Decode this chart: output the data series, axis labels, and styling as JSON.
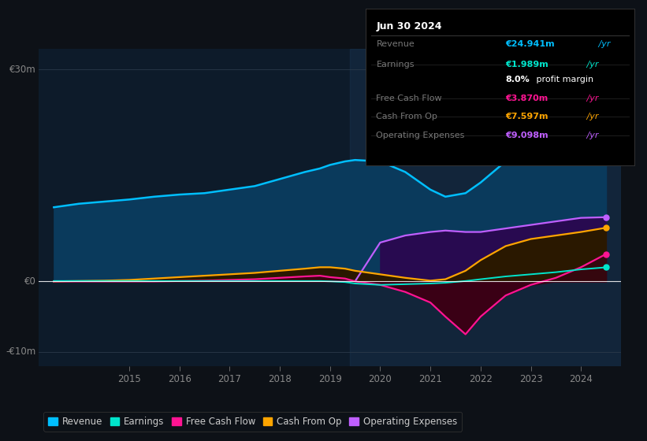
{
  "background_color": "#0d1117",
  "plot_bg_color": "#0d1b2a",
  "title": "Jun 30 2024",
  "info_rows": [
    {
      "label": "Revenue",
      "value": "€24.941m",
      "suffix": " /yr",
      "value_color": "#00bfff"
    },
    {
      "label": "Earnings",
      "value": "€1.989m",
      "suffix": " /yr",
      "value_color": "#00e5cc"
    },
    {
      "label": "",
      "value": "8.0%",
      "suffix": " profit margin",
      "value_color": "#ffffff"
    },
    {
      "label": "Free Cash Flow",
      "value": "€3.870m",
      "suffix": " /yr",
      "value_color": "#ff1493"
    },
    {
      "label": "Cash From Op",
      "value": "€7.597m",
      "suffix": " /yr",
      "value_color": "#ffa500"
    },
    {
      "label": "Operating Expenses",
      "value": "€9.098m",
      "suffix": " /yr",
      "value_color": "#bf5fff"
    }
  ],
  "years": [
    2013.5,
    2014.0,
    2014.5,
    2015.0,
    2015.5,
    2016.0,
    2016.5,
    2017.0,
    2017.5,
    2018.0,
    2018.5,
    2018.8,
    2019.0,
    2019.3,
    2019.5,
    2020.0,
    2020.5,
    2021.0,
    2021.3,
    2021.7,
    2022.0,
    2022.5,
    2023.0,
    2023.5,
    2024.0,
    2024.5
  ],
  "revenue": [
    10.5,
    11.0,
    11.3,
    11.6,
    12.0,
    12.3,
    12.5,
    13.0,
    13.5,
    14.5,
    15.5,
    16.0,
    16.5,
    17.0,
    17.2,
    17.0,
    15.5,
    13.0,
    12.0,
    12.5,
    14.0,
    17.0,
    19.5,
    21.5,
    23.5,
    24.941
  ],
  "earnings": [
    0.05,
    0.05,
    0.05,
    0.05,
    0.05,
    0.05,
    0.05,
    0.05,
    0.05,
    0.05,
    0.05,
    0.05,
    0.0,
    -0.1,
    -0.3,
    -0.5,
    -0.4,
    -0.3,
    -0.2,
    0.05,
    0.3,
    0.7,
    1.0,
    1.3,
    1.7,
    1.989
  ],
  "free_cash_flow": [
    0.0,
    0.0,
    0.0,
    0.0,
    0.0,
    0.05,
    0.1,
    0.2,
    0.3,
    0.5,
    0.7,
    0.8,
    0.6,
    0.4,
    0.0,
    -0.5,
    -1.5,
    -3.0,
    -5.0,
    -7.5,
    -5.0,
    -2.0,
    -0.5,
    0.5,
    2.0,
    3.87
  ],
  "cash_from_op": [
    0.0,
    0.05,
    0.1,
    0.2,
    0.4,
    0.6,
    0.8,
    1.0,
    1.2,
    1.5,
    1.8,
    2.0,
    2.0,
    1.8,
    1.5,
    1.0,
    0.5,
    0.1,
    0.3,
    1.5,
    3.0,
    5.0,
    6.0,
    6.5,
    7.0,
    7.597
  ],
  "op_expenses": [
    0.0,
    0.0,
    0.0,
    0.0,
    0.0,
    0.0,
    0.0,
    0.0,
    0.0,
    0.0,
    0.0,
    0.0,
    0.0,
    0.0,
    0.0,
    5.5,
    6.5,
    7.0,
    7.2,
    7.0,
    7.0,
    7.5,
    8.0,
    8.5,
    9.0,
    9.098
  ],
  "revenue_color": "#00bfff",
  "revenue_fill": "#0a3a5c",
  "earnings_color": "#00e5cc",
  "fcf_color": "#ff1493",
  "fcf_fill": "#3a0015",
  "cashop_color": "#ffa500",
  "cashop_fill": "#2a1800",
  "opex_color": "#bf5fff",
  "opex_fill": "#280a50",
  "ylabel_30": "€30m",
  "ylabel_0": "€0",
  "ylabel_neg10": "-€10m",
  "ylim": [
    -12,
    33
  ],
  "legend_items": [
    {
      "label": "Revenue",
      "color": "#00bfff"
    },
    {
      "label": "Earnings",
      "color": "#00e5cc"
    },
    {
      "label": "Free Cash Flow",
      "color": "#ff1493"
    },
    {
      "label": "Cash From Op",
      "color": "#ffa500"
    },
    {
      "label": "Operating Expenses",
      "color": "#bf5fff"
    }
  ],
  "x_ticks": [
    2015,
    2016,
    2017,
    2018,
    2019,
    2020,
    2021,
    2022,
    2023,
    2024
  ],
  "xlim": [
    2013.2,
    2024.8
  ],
  "shade_start_x": 2019.4,
  "shade_end_x": 2024.8
}
